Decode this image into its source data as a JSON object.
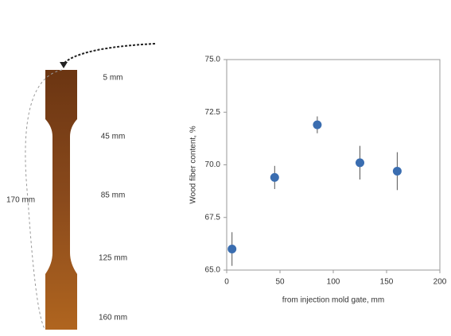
{
  "chart_data": {
    "type": "scatter",
    "xlabel": "from injection mold gate, mm",
    "ylabel": "Wood fiber content, %",
    "x": [
      5,
      45,
      85,
      125,
      160
    ],
    "values": [
      66.0,
      69.4,
      71.9,
      70.1,
      69.7
    ],
    "errors": [
      0.8,
      0.55,
      0.4,
      0.8,
      0.9
    ],
    "color": "#3a6db0",
    "xlim": [
      0,
      200
    ],
    "xticks": [
      0,
      50,
      100,
      150,
      200
    ],
    "ylim": [
      65,
      75
    ],
    "yticks": [
      {
        "value": 65,
        "label": "65.0"
      },
      {
        "value": 67.5,
        "label": "67.5"
      },
      {
        "value": 70,
        "label": "70.0"
      },
      {
        "value": 72.5,
        "label": "72.5"
      },
      {
        "value": 75,
        "label": "75.0"
      }
    ]
  },
  "specimen": {
    "length_label": "170 mm",
    "position_labels": [
      "5 mm",
      "45 mm",
      "85 mm",
      "125 mm",
      "160 mm"
    ]
  }
}
